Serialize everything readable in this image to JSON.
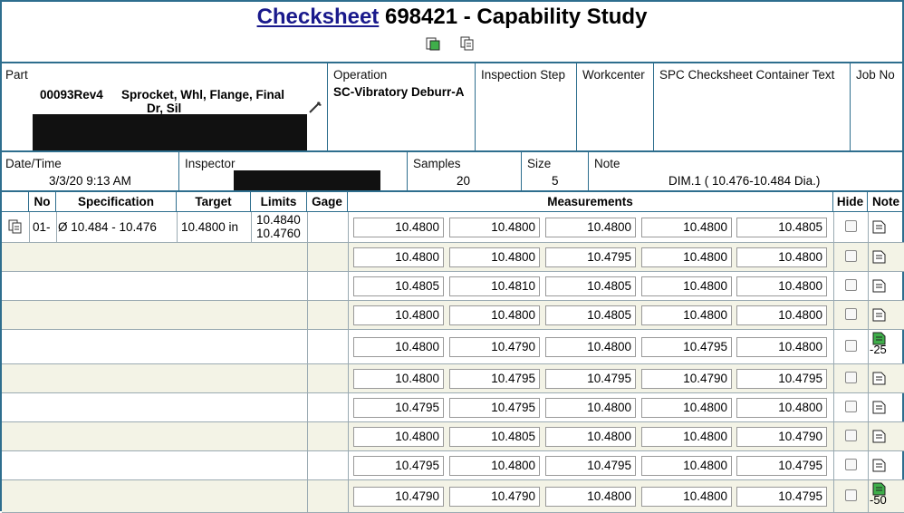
{
  "title": {
    "link": "Checksheet",
    "rest": "698421 - Capability Study"
  },
  "part": {
    "label": "Part",
    "number": "00093Rev4",
    "desc1": "Sprocket, Whl, Flange, Final",
    "desc2": "Dr, Sil"
  },
  "operation": {
    "label": "Operation",
    "value": "SC-Vibratory Deburr-A"
  },
  "inspection_step": {
    "label": "Inspection Step"
  },
  "workcenter": {
    "label": "Workcenter"
  },
  "container_text": {
    "label": "SPC Checksheet Container Text"
  },
  "job_no": {
    "label": "Job No"
  },
  "datetime": {
    "label": "Date/Time",
    "value": "3/3/20 9:13 AM"
  },
  "inspector": {
    "label": "Inspector"
  },
  "samples": {
    "label": "Samples",
    "value": "20"
  },
  "size": {
    "label": "Size",
    "value": "5"
  },
  "note": {
    "label": "Note",
    "value": "DIM.1 ( 10.476-10.484 Dia.)"
  },
  "table": {
    "headers": {
      "no": "No",
      "spec": "Specification",
      "target": "Target",
      "limits": "Limits",
      "gage": "Gage",
      "measurements": "Measurements",
      "hide": "Hide",
      "note": "Note"
    },
    "first": {
      "no": "01-",
      "spec": "Ø 10.484 - 10.476",
      "target": "10.4800 in",
      "limit_hi": "10.4840",
      "limit_lo": "10.4760"
    },
    "rows": [
      [
        "10.4800",
        "10.4800",
        "10.4800",
        "10.4800",
        "10.4805"
      ],
      [
        "10.4800",
        "10.4800",
        "10.4795",
        "10.4800",
        "10.4800"
      ],
      [
        "10.4805",
        "10.4810",
        "10.4805",
        "10.4800",
        "10.4800"
      ],
      [
        "10.4800",
        "10.4800",
        "10.4805",
        "10.4800",
        "10.4800"
      ],
      [
        "10.4800",
        "10.4790",
        "10.4800",
        "10.4795",
        "10.4800"
      ],
      [
        "10.4800",
        "10.4795",
        "10.4795",
        "10.4790",
        "10.4795"
      ],
      [
        "10.4795",
        "10.4795",
        "10.4800",
        "10.4800",
        "10.4800"
      ],
      [
        "10.4800",
        "10.4805",
        "10.4800",
        "10.4800",
        "10.4790"
      ],
      [
        "10.4795",
        "10.4800",
        "10.4795",
        "10.4800",
        "10.4795"
      ],
      [
        "10.4790",
        "10.4790",
        "10.4800",
        "10.4800",
        "10.4795"
      ]
    ],
    "row_notes": [
      "",
      "",
      "",
      "",
      "-25",
      "",
      "",
      "",
      "",
      "-50"
    ],
    "note_icon_colors": {
      "plain": "#ffffff",
      "green": "#3fae4a"
    }
  }
}
